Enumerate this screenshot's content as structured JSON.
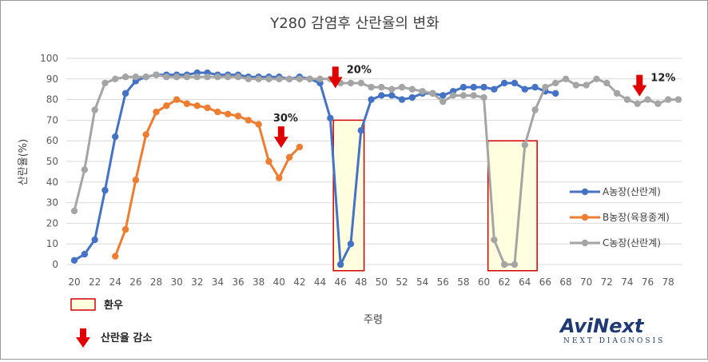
{
  "chart_data": {
    "type": "line",
    "title": "Y280 감염후 산란율의 변화",
    "xlabel": "주령",
    "ylabel": "산란율(%)",
    "xlim": [
      20,
      79
    ],
    "ylim": [
      0,
      100
    ],
    "yticks": [
      0,
      10,
      20,
      30,
      40,
      50,
      60,
      70,
      80,
      90,
      100
    ],
    "xticks": [
      20,
      22,
      24,
      26,
      28,
      30,
      32,
      34,
      36,
      38,
      40,
      42,
      44,
      46,
      48,
      50,
      52,
      54,
      56,
      58,
      60,
      62,
      64,
      66,
      68,
      70,
      72,
      74,
      76,
      78
    ],
    "grid": "horizontal",
    "legend_position": "right",
    "series": [
      {
        "name": "A농장(산란계)",
        "color": "#4472C4",
        "points": [
          [
            20,
            2
          ],
          [
            21,
            5
          ],
          [
            22,
            12
          ],
          [
            23,
            36
          ],
          [
            24,
            62
          ],
          [
            25,
            83
          ],
          [
            26,
            89
          ],
          [
            27,
            91
          ],
          [
            28,
            92
          ],
          [
            29,
            92
          ],
          [
            30,
            92
          ],
          [
            31,
            92
          ],
          [
            32,
            93
          ],
          [
            33,
            93
          ],
          [
            34,
            92
          ],
          [
            35,
            92
          ],
          [
            36,
            92
          ],
          [
            37,
            91
          ],
          [
            38,
            91
          ],
          [
            39,
            91
          ],
          [
            40,
            91
          ],
          [
            41,
            90
          ],
          [
            42,
            91
          ],
          [
            43,
            90
          ],
          [
            44,
            88
          ],
          [
            45,
            71
          ],
          [
            46,
            0
          ],
          [
            47,
            10
          ],
          [
            48,
            65
          ],
          [
            49,
            80
          ],
          [
            50,
            82
          ],
          [
            51,
            82
          ],
          [
            52,
            80
          ],
          [
            53,
            81
          ],
          [
            54,
            83
          ],
          [
            55,
            83
          ],
          [
            56,
            82
          ],
          [
            57,
            84
          ],
          [
            58,
            86
          ],
          [
            59,
            86
          ],
          [
            60,
            86
          ],
          [
            61,
            85
          ],
          [
            62,
            88
          ],
          [
            63,
            88
          ],
          [
            64,
            85
          ],
          [
            65,
            86
          ],
          [
            66,
            84
          ],
          [
            67,
            83
          ]
        ]
      },
      {
        "name": "B농장(육용종계)",
        "color": "#ED7D31",
        "points": [
          [
            24,
            4
          ],
          [
            25,
            17
          ],
          [
            26,
            41
          ],
          [
            27,
            63
          ],
          [
            28,
            74
          ],
          [
            29,
            77
          ],
          [
            30,
            80
          ],
          [
            31,
            78
          ],
          [
            32,
            77
          ],
          [
            33,
            76
          ],
          [
            34,
            74
          ],
          [
            35,
            73
          ],
          [
            36,
            72
          ],
          [
            37,
            70
          ],
          [
            38,
            68
          ],
          [
            39,
            50
          ],
          [
            40,
            42
          ],
          [
            41,
            52
          ],
          [
            42,
            57
          ]
        ]
      },
      {
        "name": "C농장(산란계)",
        "color": "#A5A5A5",
        "points": [
          [
            20,
            26
          ],
          [
            21,
            46
          ],
          [
            22,
            75
          ],
          [
            23,
            88
          ],
          [
            24,
            90
          ],
          [
            25,
            91
          ],
          [
            26,
            91
          ],
          [
            27,
            91
          ],
          [
            28,
            92
          ],
          [
            29,
            91
          ],
          [
            30,
            91
          ],
          [
            31,
            91
          ],
          [
            32,
            91
          ],
          [
            33,
            91
          ],
          [
            34,
            91
          ],
          [
            35,
            91
          ],
          [
            36,
            91
          ],
          [
            37,
            90
          ],
          [
            38,
            90
          ],
          [
            39,
            90
          ],
          [
            40,
            90
          ],
          [
            41,
            90
          ],
          [
            42,
            90
          ],
          [
            43,
            90
          ],
          [
            44,
            90
          ],
          [
            45,
            90
          ],
          [
            46,
            88
          ],
          [
            47,
            88
          ],
          [
            48,
            88
          ],
          [
            49,
            86
          ],
          [
            50,
            86
          ],
          [
            51,
            85
          ],
          [
            52,
            86
          ],
          [
            53,
            85
          ],
          [
            54,
            84
          ],
          [
            55,
            83
          ],
          [
            56,
            79
          ],
          [
            57,
            82
          ],
          [
            58,
            82
          ],
          [
            59,
            82
          ],
          [
            60,
            81
          ],
          [
            61,
            12
          ],
          [
            62,
            0
          ],
          [
            63,
            0
          ],
          [
            64,
            58
          ],
          [
            65,
            75
          ],
          [
            66,
            86
          ],
          [
            67,
            88
          ],
          [
            68,
            90
          ],
          [
            69,
            87
          ],
          [
            70,
            87
          ],
          [
            71,
            90
          ],
          [
            72,
            88
          ],
          [
            73,
            83
          ],
          [
            74,
            80
          ],
          [
            75,
            78
          ],
          [
            76,
            80
          ],
          [
            77,
            78
          ],
          [
            78,
            80
          ],
          [
            79,
            80
          ]
        ]
      }
    ],
    "molt_regions": [
      {
        "x": [
          45.3,
          48.3
        ],
        "y": [
          -3,
          70
        ]
      },
      {
        "x": [
          60.4,
          65.2
        ],
        "y": [
          -3,
          60
        ]
      }
    ],
    "drop_markers": [
      {
        "label": "30%",
        "x": 40.2,
        "y_top": 67
      },
      {
        "label": "20%",
        "x": 45.5,
        "y_top": 96
      },
      {
        "label": "12%",
        "x": 75.2,
        "y_top": 92
      }
    ],
    "key_legend": {
      "molt_label": "환우",
      "drop_label": "산란율 감소"
    }
  },
  "logo": {
    "name": "AviNext",
    "tagline": "NEXT DIAGNOSIS"
  }
}
